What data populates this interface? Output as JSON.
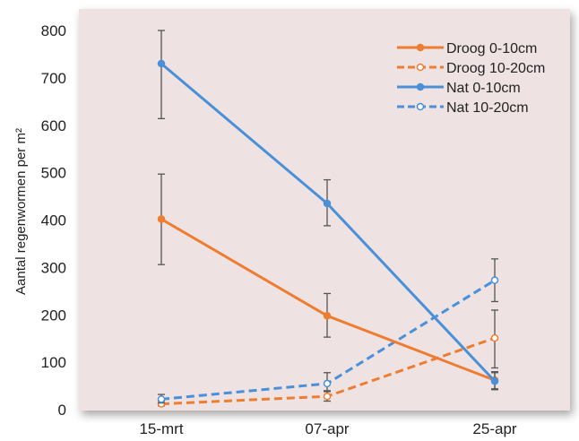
{
  "chart_data": {
    "type": "line",
    "categories": [
      "15-mrt",
      "07-apr",
      "25-apr"
    ],
    "ylabel": "Aantal regenwormen per m²",
    "ylim": [
      0,
      800
    ],
    "yticks": [
      0,
      100,
      200,
      300,
      400,
      500,
      600,
      700,
      800
    ],
    "grid": false,
    "legend_position": "top-right",
    "background_color": "#EEE3E2",
    "series": [
      {
        "name": "Droog   0-10cm",
        "color": "#EE7D31",
        "dashed": false,
        "marker": "filled",
        "values": [
          402,
          198,
          62
        ],
        "err_low": [
          306,
          153,
          44
        ],
        "err_high": [
          497,
          245,
          80
        ]
      },
      {
        "name": "Droog 10-20cm",
        "color": "#EE7D31",
        "dashed": true,
        "marker": "open",
        "values": [
          12,
          28,
          151
        ],
        "err_low": [
          8,
          18,
          88
        ],
        "err_high": [
          18,
          38,
          210
        ]
      },
      {
        "name": "Nat   0-10cm",
        "color": "#4A90D9",
        "dashed": false,
        "marker": "filled",
        "values": [
          730,
          435,
          60
        ],
        "err_low": [
          614,
          388,
          42
        ],
        "err_high": [
          800,
          485,
          78
        ]
      },
      {
        "name": "Nat 10-20cm",
        "color": "#4A90D9",
        "dashed": true,
        "marker": "open",
        "values": [
          22,
          55,
          273
        ],
        "err_low": [
          14,
          40,
          228
        ],
        "err_high": [
          32,
          78,
          318
        ]
      }
    ]
  }
}
